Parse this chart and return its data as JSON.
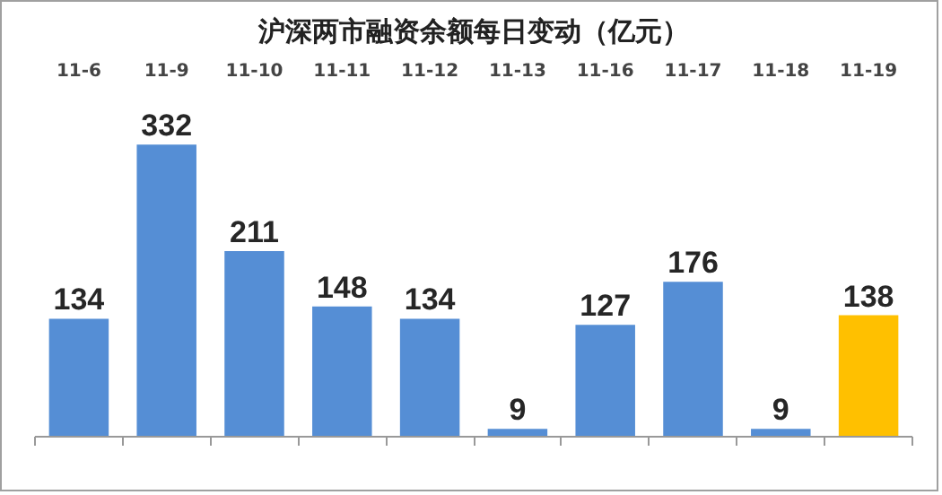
{
  "chart_data": {
    "type": "bar",
    "title": "沪深两市融资余额每日变动（亿元）",
    "categories": [
      "11-6",
      "11-9",
      "11-10",
      "11-11",
      "11-12",
      "11-13",
      "11-16",
      "11-17",
      "11-18",
      "11-19"
    ],
    "values": [
      134,
      332,
      211,
      148,
      134,
      9,
      127,
      176,
      9,
      138
    ],
    "colors": [
      "#558ed5",
      "#558ed5",
      "#558ed5",
      "#558ed5",
      "#558ed5",
      "#558ed5",
      "#558ed5",
      "#558ed5",
      "#558ed5",
      "#ffc000"
    ],
    "data_labels": true,
    "grid": false
  }
}
